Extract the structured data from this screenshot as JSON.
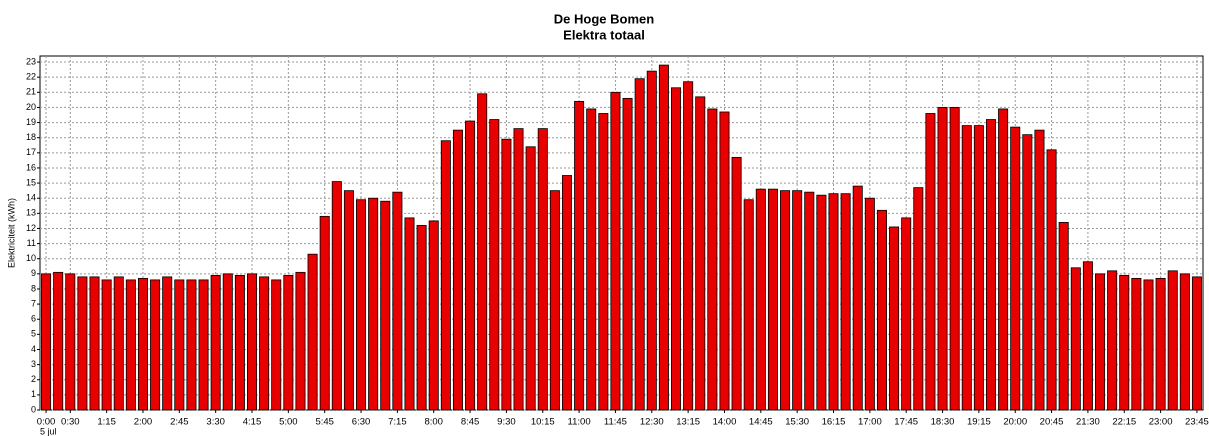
{
  "chart_data": {
    "type": "bar",
    "title": "De Hoge Bomen",
    "subtitle": "Elektra totaal",
    "y_label": "Elektriciteit (kWh)",
    "date_label": "5 jul",
    "categories": [
      "0:00",
      null,
      "0:30",
      null,
      null,
      "1:15",
      null,
      null,
      "2:00",
      null,
      null,
      "2:45",
      null,
      null,
      "3:30",
      null,
      null,
      "4:15",
      null,
      null,
      "5:00",
      null,
      null,
      "5:45",
      null,
      null,
      "6:30",
      null,
      null,
      "7:15",
      null,
      null,
      "8:00",
      null,
      null,
      "8:45",
      null,
      null,
      "9:30",
      null,
      null,
      "10:15",
      null,
      null,
      "11:00",
      null,
      null,
      "11:45",
      null,
      null,
      "12:30",
      null,
      null,
      "13:15",
      null,
      null,
      "14:00",
      null,
      null,
      "14:45",
      null,
      null,
      "15:30",
      null,
      null,
      "16:15",
      null,
      null,
      "17:00",
      null,
      null,
      "17:45",
      null,
      null,
      "18:30",
      null,
      null,
      "19:15",
      null,
      null,
      "20:00",
      null,
      null,
      "20:45",
      null,
      null,
      "21:30",
      null,
      null,
      "22:15",
      null,
      null,
      "23:00",
      null,
      null,
      "23:45"
    ],
    "values": [
      9.0,
      9.1,
      9.0,
      8.8,
      8.8,
      8.6,
      8.8,
      8.6,
      8.7,
      8.6,
      8.8,
      8.6,
      8.6,
      8.6,
      8.9,
      9.0,
      8.9,
      9.0,
      8.8,
      8.6,
      8.9,
      9.1,
      10.3,
      12.8,
      15.1,
      14.5,
      13.9,
      14.0,
      13.8,
      14.4,
      12.7,
      12.2,
      12.5,
      17.8,
      18.5,
      19.1,
      20.9,
      19.2,
      17.9,
      18.6,
      17.4,
      18.6,
      14.5,
      15.5,
      20.4,
      19.9,
      19.6,
      21.0,
      20.6,
      21.9,
      22.4,
      22.8,
      21.3,
      21.7,
      20.7,
      19.9,
      19.7,
      16.7,
      13.9,
      14.6,
      14.6,
      14.5,
      14.5,
      14.4,
      14.2,
      14.3,
      14.3,
      14.8,
      14.0,
      13.2,
      12.1,
      12.7,
      14.7,
      19.6,
      20.0,
      20.0,
      18.8,
      18.8,
      19.2,
      19.9,
      18.7,
      18.2,
      18.5,
      17.2,
      12.4,
      9.4,
      9.8,
      9.0,
      9.2,
      8.9,
      8.7,
      8.6,
      8.7,
      9.2,
      9.0,
      8.8
    ],
    "color": "#e80000",
    "ylim": [
      0,
      23.4
    ],
    "yticks": [
      0,
      1,
      2,
      3,
      4,
      5,
      6,
      7,
      8,
      9,
      10,
      11,
      12,
      13,
      14,
      15,
      16,
      17,
      18,
      19,
      20,
      21,
      22,
      23
    ],
    "grid": true
  }
}
